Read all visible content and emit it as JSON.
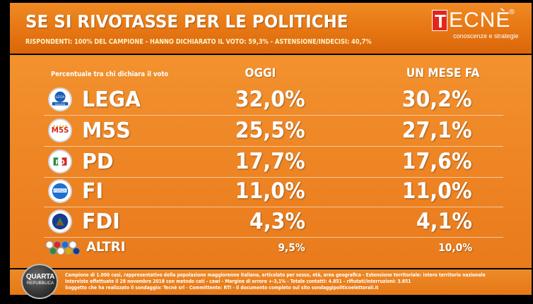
{
  "header": {
    "title": "SE SI RIVOTASSE PER LE POLITICHE",
    "subtitle": "RISPONDENTI: 100% DEL CAMPIONE - HANNO DICHIARATO IL VOTO: 59,3% - ASTENSIONE/INDECISI: 40,7%",
    "logo_text": "ECNÈ",
    "logo_initial": "T",
    "logo_reg": "®",
    "logo_tagline": "conoscenze e strategie",
    "title_color": "#ffffff",
    "accent": "#e97b1c"
  },
  "table": {
    "caption": "Percentuale tra chi dichiara il voto",
    "col_today": "OGGI",
    "col_month": "UN MESE FA"
  },
  "chart_data": {
    "type": "table",
    "title": "SE SI RIVOTASSE PER LE POLITICHE",
    "columns": [
      "OGGI",
      "UN MESE FA"
    ],
    "rows": [
      {
        "party": "LEGA",
        "today": "32,0%",
        "month_ago": "30,2%",
        "logo": "lega-logo"
      },
      {
        "party": "M5S",
        "today": "25,5%",
        "month_ago": "27,1%",
        "logo": "m5s-logo"
      },
      {
        "party": "PD",
        "today": "17,7%",
        "month_ago": "17,6%",
        "logo": "pd-logo"
      },
      {
        "party": "FI",
        "today": "11,0%",
        "month_ago": "11,0%",
        "logo": "fi-logo"
      },
      {
        "party": "FDI",
        "today": "4,3%",
        "month_ago": "4,1%",
        "logo": "fdi-logo"
      },
      {
        "party": "ALTRI",
        "today": "9,5%",
        "month_ago": "10,0%",
        "logo": "altri-logos"
      }
    ]
  },
  "footer": {
    "line1": "Campione di 1.000 casi, rappresentativo della popolazione maggiorenne italiana, articolato per sesso, età, area geografica - Estensione territoriale: intero territorio nazionale",
    "line2": "Interviste effettuate il 28 novembre 2018 con metodo cati - cawi - Margine di errore +-3,1% - Totale contatti: 4.851 - rifiutati/interruzioni: 3.851",
    "line3": "Soggetto che ha realizzato il sondaggio: Tecnè srl - Committente: RTI - Il documento completo sul sito sondaggipoliticoelettorali.it",
    "brand_word": "QUARTA",
    "brand_sub": "REPUBBLICA"
  }
}
